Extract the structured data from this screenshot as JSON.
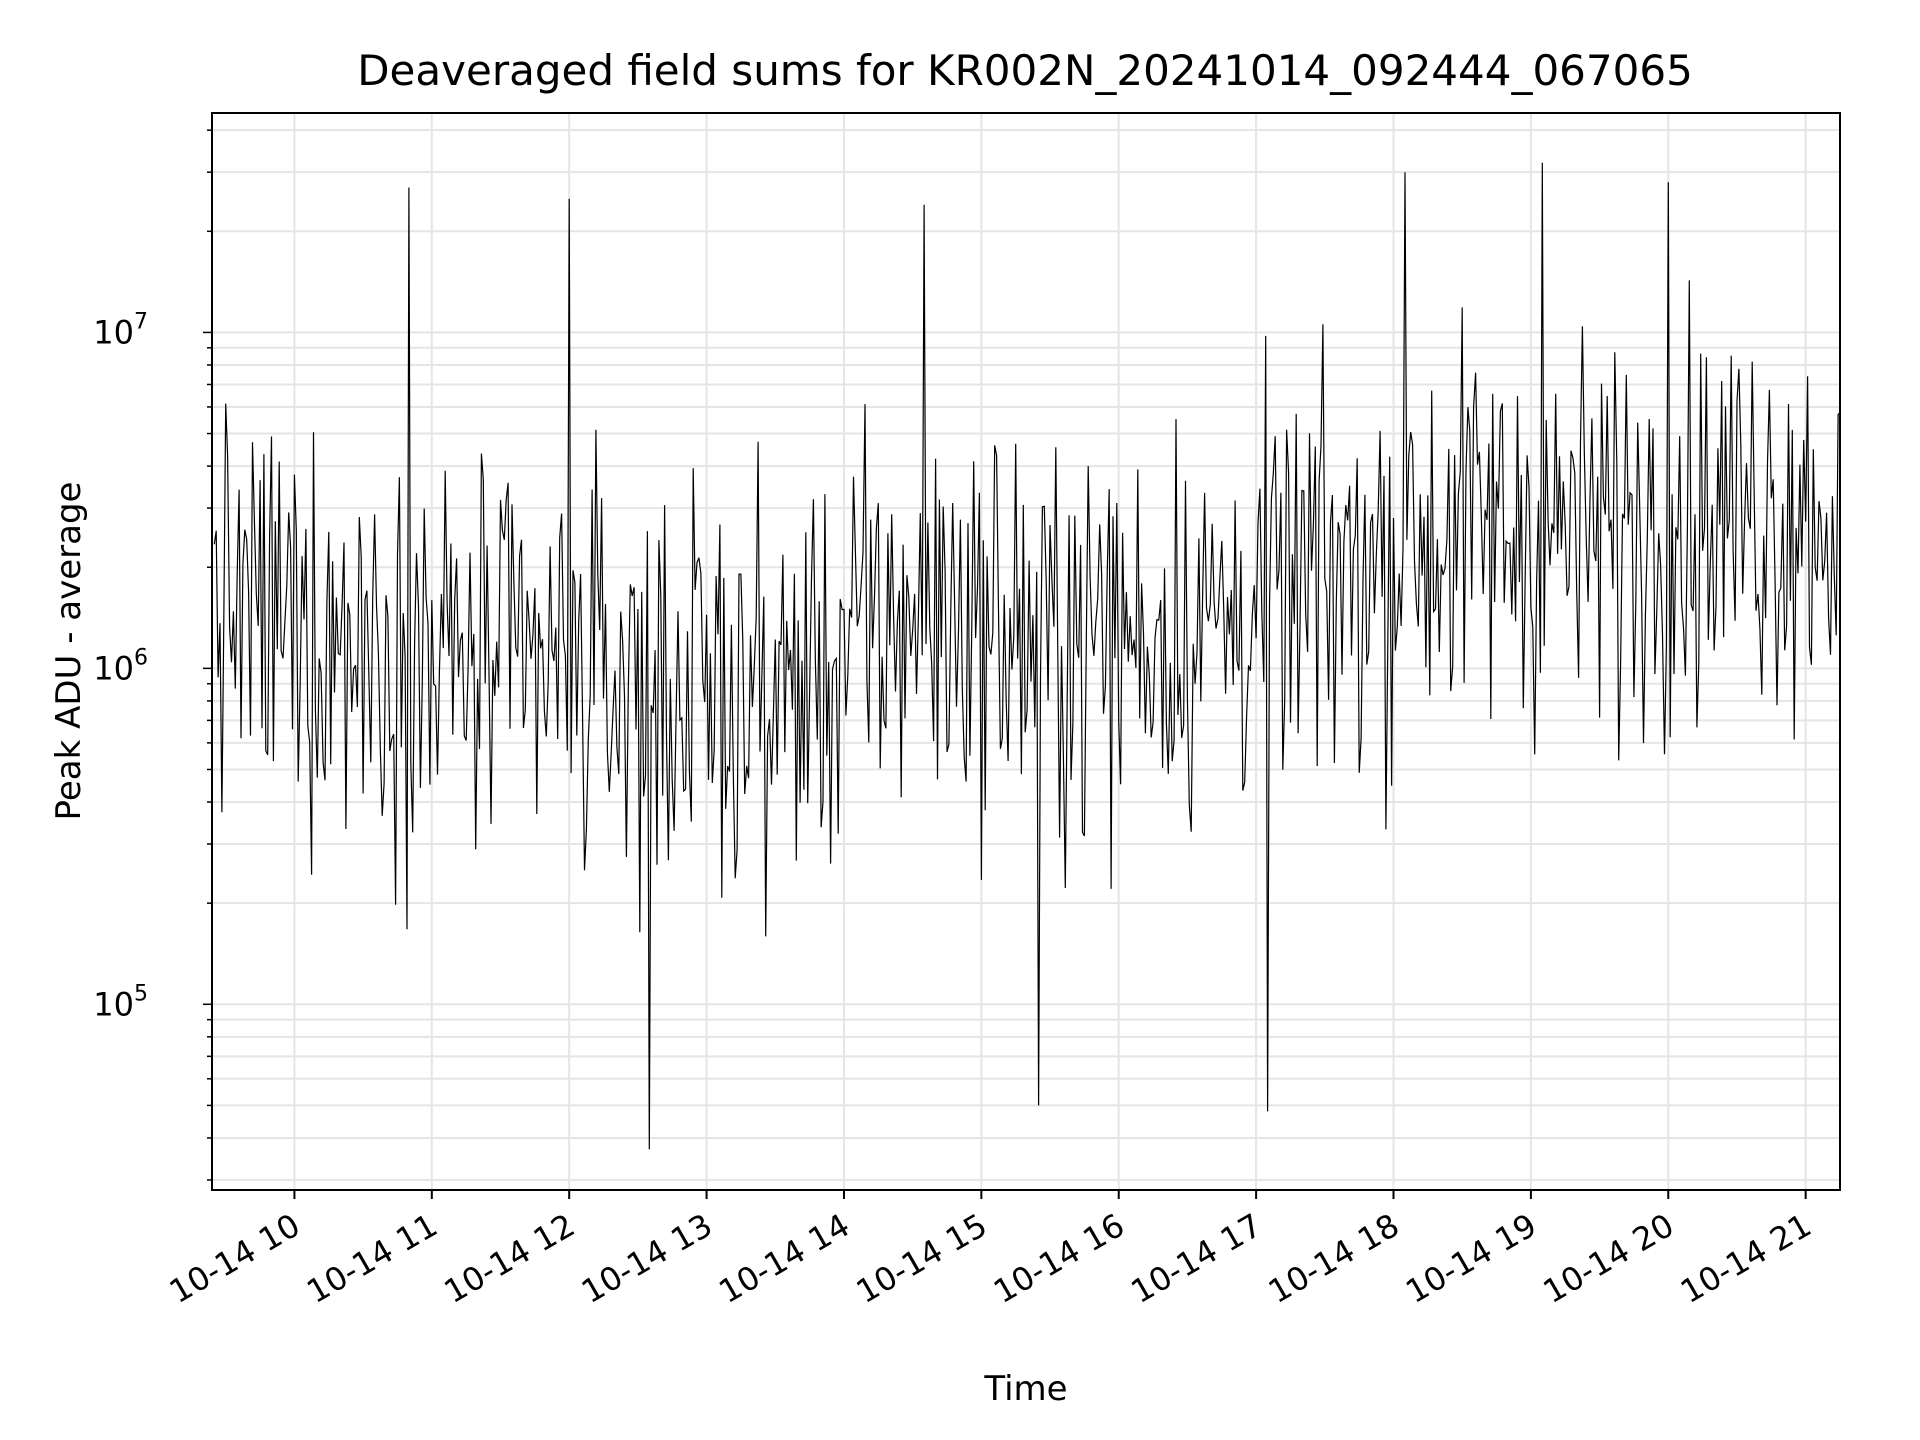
{
  "chart_data": {
    "type": "line",
    "title": "Deaveraged field sums for KR002N_20241014_092444_067065",
    "xlabel": "Time",
    "ylabel": "Peak ADU - average",
    "yscale": "log",
    "ylim": [
      28000,
      45000000
    ],
    "xlim": [
      "10-14 09:24",
      "10-14 21:15"
    ],
    "grid": true,
    "line_color": "#000000",
    "grid_color": "#e5e5e5",
    "x_ticks": [
      {
        "value": "10-14 10:00",
        "label": "10-14 10"
      },
      {
        "value": "10-14 11:00",
        "label": "10-14 11"
      },
      {
        "value": "10-14 12:00",
        "label": "10-14 12"
      },
      {
        "value": "10-14 13:00",
        "label": "10-14 13"
      },
      {
        "value": "10-14 14:00",
        "label": "10-14 14"
      },
      {
        "value": "10-14 15:00",
        "label": "10-14 15"
      },
      {
        "value": "10-14 16:00",
        "label": "10-14 16"
      },
      {
        "value": "10-14 17:00",
        "label": "10-14 17"
      },
      {
        "value": "10-14 18:00",
        "label": "10-14 18"
      },
      {
        "value": "10-14 19:00",
        "label": "10-14 19"
      },
      {
        "value": "10-14 20:00",
        "label": "10-14 20"
      },
      {
        "value": "10-14 21:00",
        "label": "10-14 21"
      }
    ],
    "y_ticks": [
      {
        "value": 100000,
        "base": "10",
        "exp": "5"
      },
      {
        "value": 1000000,
        "base": "10",
        "exp": "6"
      },
      {
        "value": 10000000,
        "base": "10",
        "exp": "7"
      }
    ],
    "series": [
      {
        "points_per_hour": 12,
        "x": [
          "10-14 09:25",
          "10-14 21:15"
        ],
        "y_median_by_hour": [
          {
            "time": "10-14 09:30",
            "value": 1500000
          },
          {
            "time": "10-14 10:30",
            "value": 1200000
          },
          {
            "time": "10-14 11:30",
            "value": 1000000
          },
          {
            "time": "10-14 12:30",
            "value": 900000
          },
          {
            "time": "10-14 13:30",
            "value": 800000
          },
          {
            "time": "10-14 14:30",
            "value": 1500000
          },
          {
            "time": "10-14 15:30",
            "value": 1200000
          },
          {
            "time": "10-14 16:30",
            "value": 1300000
          },
          {
            "time": "10-14 17:30",
            "value": 1800000
          },
          {
            "time": "10-14 18:30",
            "value": 2600000
          },
          {
            "time": "10-14 19:30",
            "value": 2500000
          },
          {
            "time": "10-14 20:30",
            "value": 3000000
          }
        ],
        "notable_peaks": [
          {
            "time": "10-14 10:50",
            "value": 27000000
          },
          {
            "time": "10-14 12:00",
            "value": 25000000
          },
          {
            "time": "10-14 14:35",
            "value": 24000000
          },
          {
            "time": "10-14 18:05",
            "value": 30000000
          },
          {
            "time": "10-14 19:05",
            "value": 32000000
          },
          {
            "time": "10-14 20:00",
            "value": 28000000
          }
        ],
        "notable_troughs": [
          {
            "time": "10-14 12:35",
            "value": 37000.0
          },
          {
            "time": "10-14 15:25",
            "value": 50000
          },
          {
            "time": "10-14 17:05",
            "value": 48000
          }
        ]
      }
    ]
  }
}
